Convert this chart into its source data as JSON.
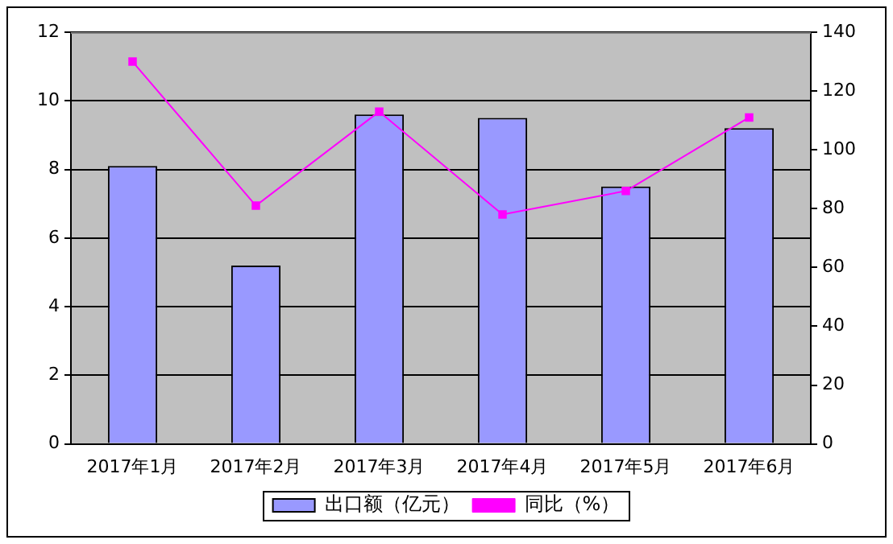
{
  "chart_data": {
    "type": "bar",
    "categories": [
      "2017年1月",
      "2017年2月",
      "2017年3月",
      "2017年4月",
      "2017年5月",
      "2017年6月"
    ],
    "series": [
      {
        "name": "出口额（亿元）",
        "color": "#9999ff",
        "values": [
          8.1,
          5.2,
          9.6,
          9.5,
          7.5,
          9.2
        ]
      },
      {
        "name": "同比（%）",
        "type": "line",
        "axis": "y2",
        "color": "#ff00ff",
        "values": [
          130,
          81,
          113,
          78,
          86,
          111
        ]
      }
    ],
    "ylim": [
      0,
      12
    ],
    "yticks": [
      0,
      2,
      4,
      6,
      8,
      10,
      12
    ],
    "y2lim": [
      0,
      140
    ],
    "y2ticks": [
      0,
      20,
      40,
      60,
      80,
      100,
      120,
      140
    ],
    "grid": "y",
    "legend": "bottom",
    "marker": "square",
    "line_style": "solid"
  }
}
